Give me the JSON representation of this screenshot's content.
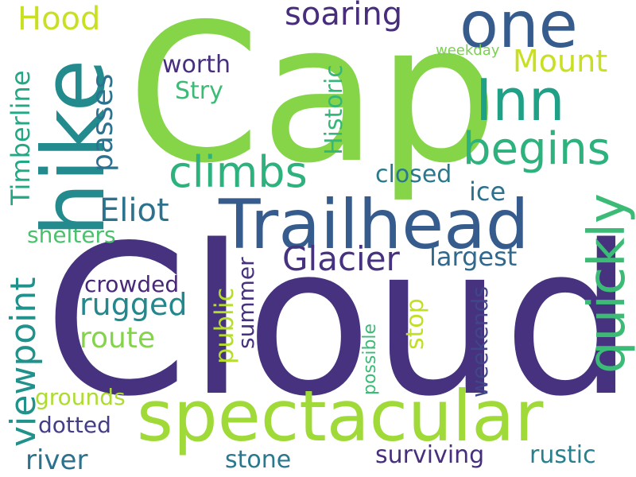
{
  "words": {
    "cap": "Cap",
    "cloud": "Cloud",
    "trailhead": "Trailhead",
    "spectacular": "spectacular",
    "hike": "hike",
    "one": "one",
    "inn": "Inn",
    "begins": "begins",
    "quickly": "quickly",
    "climbs": "climbs",
    "glacier": "Glacier",
    "eliot": "Eliot",
    "soaring": "soaring",
    "hood": "Hood",
    "mount": "Mount",
    "viewpoint": "viewpoint",
    "rugged": "rugged",
    "route": "route",
    "largest": "largest",
    "closed": "closed",
    "river": "river",
    "stone": "stone",
    "surviving": "surviving",
    "rustic": "rustic",
    "worth": "worth",
    "ice": "ice",
    "passes": "passes",
    "timberline": "Timberline",
    "historic": "Historic",
    "shelters": "shelters",
    "crowded": "crowded",
    "dotted": "dotted",
    "grounds": "grounds",
    "public": "public",
    "summer": "summer",
    "stop": "stop",
    "weekends": "weekends",
    "possible": "possible",
    "weekday": "weekday",
    "stry": "Stry"
  },
  "colors": {
    "background": "#ffffff",
    "dark_purple": "#46327e",
    "blue": "#365c8d",
    "teal": "#238a8d",
    "green": "#2db27d",
    "light_green": "#86d549",
    "yellow_green": "#c8e020"
  }
}
